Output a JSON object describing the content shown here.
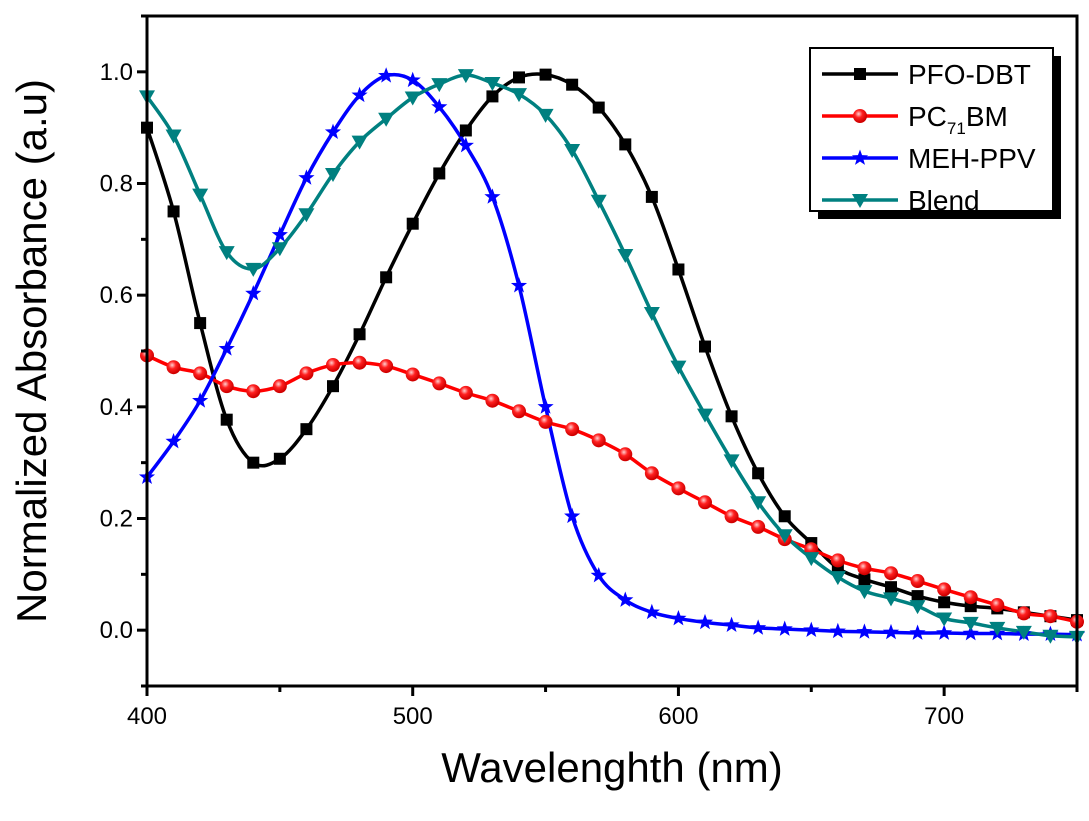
{
  "chart_data": {
    "type": "line",
    "xlabel": "Wavelenghth (nm)",
    "ylabel": "Normalized Absorbance (a.u)",
    "xlim": [
      400,
      750
    ],
    "ylim": [
      -0.1,
      1.1
    ],
    "xticks": [
      400,
      500,
      600,
      700
    ],
    "xtick_labels": [
      "400",
      "500",
      "600",
      "700"
    ],
    "yticks": [
      0.0,
      0.2,
      0.4,
      0.6,
      0.8,
      1.0
    ],
    "ytick_labels": [
      "0.0",
      "0.2",
      "0.4",
      "0.6",
      "0.8",
      "1.0"
    ],
    "grid": false,
    "legend_position": "top-right",
    "x": [
      400,
      410,
      420,
      430,
      440,
      450,
      460,
      470,
      480,
      490,
      500,
      510,
      520,
      530,
      540,
      550,
      560,
      570,
      580,
      590,
      600,
      610,
      620,
      630,
      640,
      650,
      660,
      670,
      680,
      690,
      700,
      710,
      720,
      730,
      740,
      750
    ],
    "series": [
      {
        "name": "PFO-DBT",
        "color": "#000000",
        "marker": "square",
        "values": [
          0.9,
          0.75,
          0.55,
          0.377,
          0.3,
          0.307,
          0.36,
          0.437,
          0.53,
          0.632,
          0.728,
          0.818,
          0.895,
          0.956,
          0.99,
          0.995,
          0.977,
          0.936,
          0.87,
          0.776,
          0.646,
          0.508,
          0.383,
          0.281,
          0.204,
          0.156,
          0.111,
          0.091,
          0.077,
          0.061,
          0.05,
          0.043,
          0.039,
          0.032,
          0.025,
          0.018
        ]
      },
      {
        "name": "PC71BM",
        "color": "#ff0000",
        "marker": "circle",
        "values": [
          0.492,
          0.471,
          0.46,
          0.437,
          0.428,
          0.437,
          0.46,
          0.475,
          0.479,
          0.473,
          0.458,
          0.442,
          0.425,
          0.411,
          0.392,
          0.373,
          0.36,
          0.34,
          0.315,
          0.281,
          0.254,
          0.229,
          0.204,
          0.185,
          0.163,
          0.145,
          0.125,
          0.111,
          0.102,
          0.088,
          0.073,
          0.059,
          0.045,
          0.03,
          0.025,
          0.015
        ]
      },
      {
        "name": "MEH-PPV",
        "color": "#0000ff",
        "marker": "star",
        "values": [
          0.274,
          0.338,
          0.411,
          0.504,
          0.603,
          0.708,
          0.81,
          0.892,
          0.958,
          0.993,
          0.985,
          0.937,
          0.868,
          0.776,
          0.617,
          0.4,
          0.204,
          0.098,
          0.054,
          0.032,
          0.021,
          0.014,
          0.009,
          0.004,
          0.002,
          0.0,
          -0.002,
          -0.003,
          -0.004,
          -0.005,
          -0.005,
          -0.006,
          -0.006,
          -0.007,
          -0.007,
          -0.008
        ]
      },
      {
        "name": "Blend",
        "color": "#008080",
        "marker": "triangle-down",
        "values": [
          0.956,
          0.886,
          0.78,
          0.677,
          0.647,
          0.684,
          0.745,
          0.817,
          0.875,
          0.916,
          0.954,
          0.978,
          0.994,
          0.98,
          0.96,
          0.923,
          0.86,
          0.769,
          0.672,
          0.568,
          0.472,
          0.386,
          0.304,
          0.229,
          0.17,
          0.129,
          0.095,
          0.07,
          0.057,
          0.043,
          0.021,
          0.013,
          0.004,
          -0.003,
          -0.01,
          -0.012
        ]
      }
    ]
  }
}
